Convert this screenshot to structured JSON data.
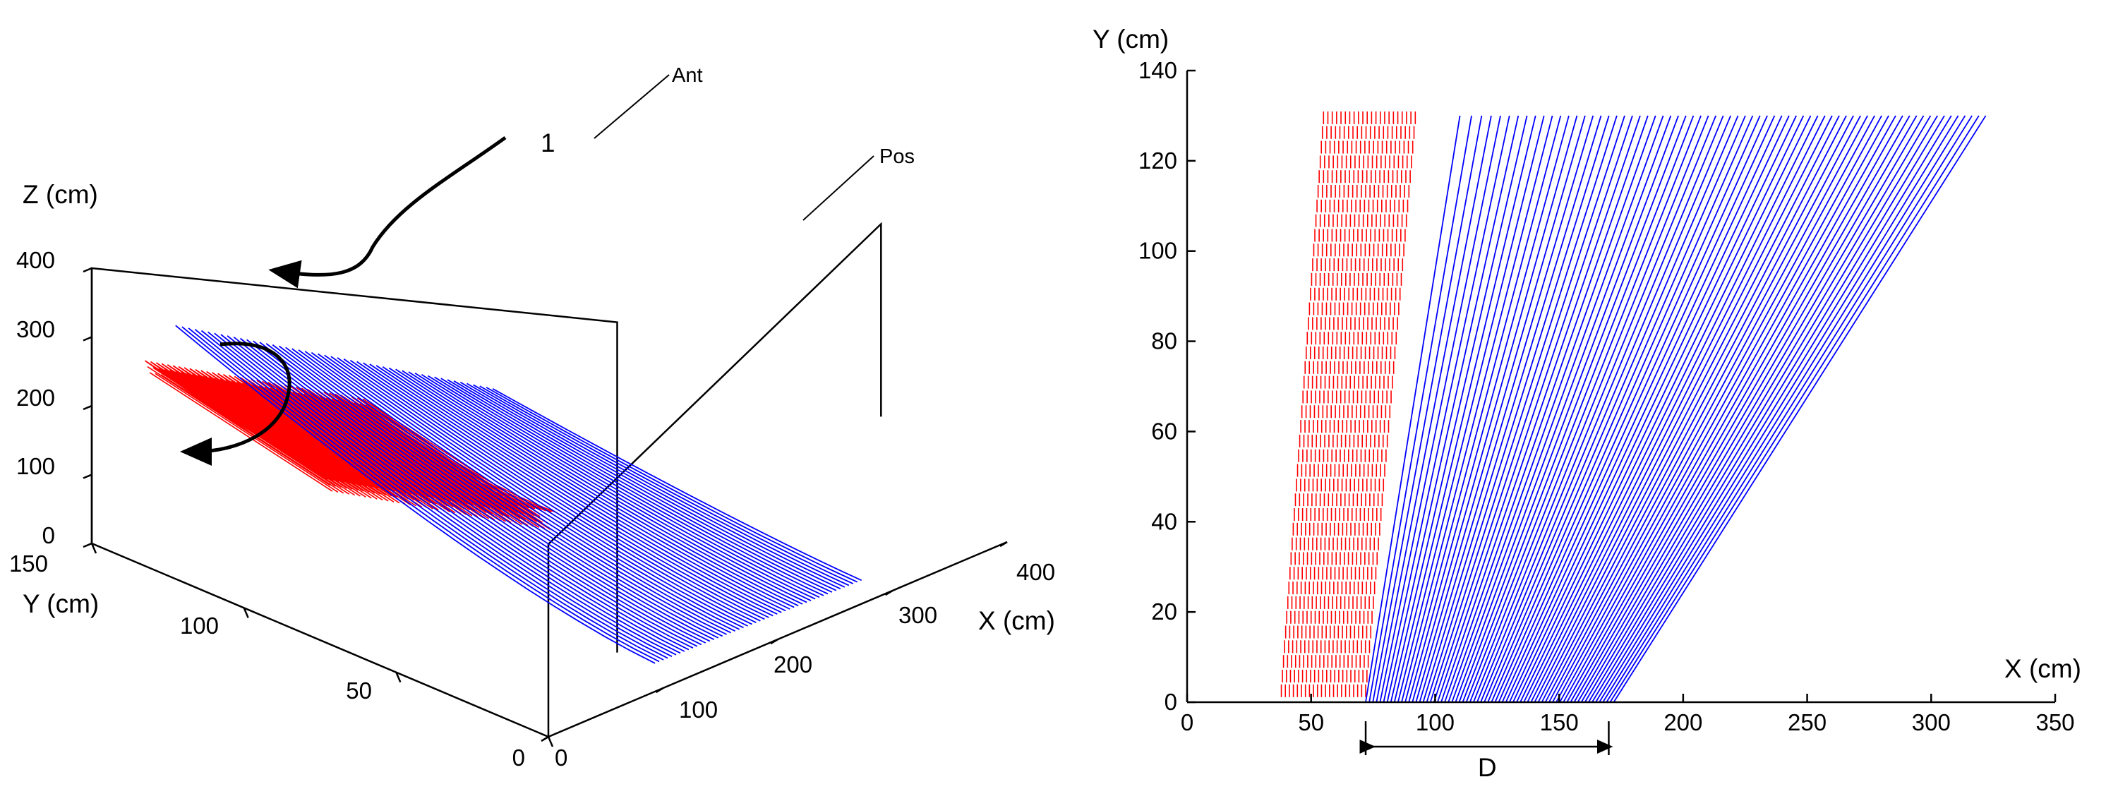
{
  "chart_data": [
    {
      "type": "3d-line",
      "xlabel": "X (cm)",
      "ylabel": "Y (cm)",
      "zlabel": "Z (cm)",
      "xlim": [
        0,
        400
      ],
      "ylim": [
        0,
        150
      ],
      "zlim": [
        0,
        400
      ],
      "x_ticks": [
        "0",
        "100",
        "200",
        "300",
        "400"
      ],
      "y_ticks": [
        "0",
        "50",
        "100",
        "150"
      ],
      "z_ticks": [
        "0",
        "100",
        "200",
        "300",
        "400"
      ],
      "annotations": {
        "ant": "Ant",
        "pos": "Pos",
        "one": "1"
      },
      "series": [
        {
          "color": "#0000ff",
          "x_range": [
            20,
            270
          ],
          "z_range": [
            10,
            330
          ],
          "bottom_z": 10
        },
        {
          "color": "#ff0000",
          "x_range": [
            20,
            210
          ],
          "z_range": [
            80,
            270
          ]
        }
      ],
      "colors": {
        "blue": "#0000ff",
        "red": "#ff0000"
      }
    },
    {
      "type": "line",
      "xlabel": "X (cm)",
      "ylabel": "Y (cm)",
      "xlim": [
        0,
        350
      ],
      "ylim": [
        0,
        140
      ],
      "x_ticks": [
        "0",
        "50",
        "100",
        "150",
        "200",
        "250",
        "300",
        "350"
      ],
      "y_ticks": [
        "0",
        "20",
        "40",
        "60",
        "80",
        "100",
        "120",
        "140"
      ],
      "annotation": "D",
      "d_range": [
        72,
        170
      ],
      "series": [
        {
          "color": "#0000ff",
          "x_start": [
            72,
            172
          ],
          "x_end": [
            110,
            322
          ],
          "y_range": [
            0,
            130
          ]
        },
        {
          "color": "#ff0000",
          "x_start": [
            38,
            72
          ],
          "x_end": [
            55,
            92
          ],
          "y_range": [
            3,
            130
          ]
        }
      ]
    }
  ]
}
